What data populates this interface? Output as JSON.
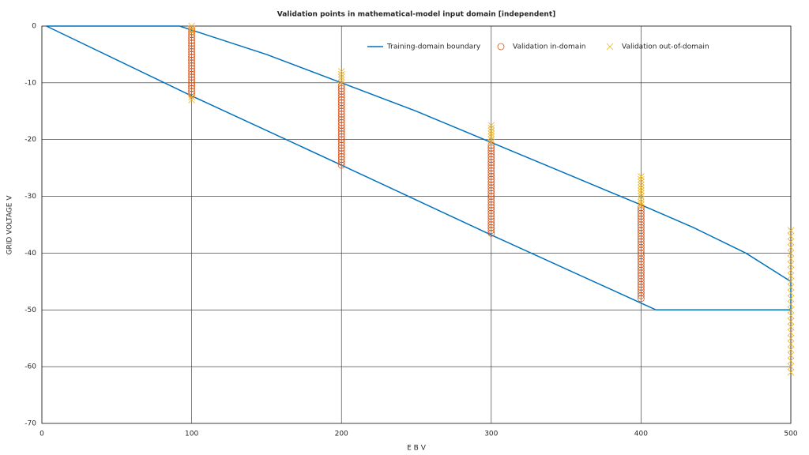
{
  "chart_data": {
    "type": "scatter",
    "title": "Validation points in mathematical-model input domain [independent]",
    "x_label": "E B V",
    "y_label": "GRID VOLTAGE V",
    "xlim": [
      0,
      500
    ],
    "ylim": [
      -70,
      0
    ],
    "xticks": [
      0,
      100,
      200,
      300,
      400,
      500
    ],
    "yticks": [
      0,
      -10,
      -20,
      -30,
      -40,
      -50,
      -60,
      -70
    ],
    "grid": true,
    "legend": "top",
    "series": [
      {
        "name": "Training-domain boundary",
        "type": "line",
        "color": "#0072bd",
        "x": [
          3,
          92,
          100,
          150,
          200,
          250,
          300,
          350,
          400,
          435,
          470,
          500,
          500,
          410,
          400,
          300,
          200,
          100,
          3
        ],
        "y": [
          0,
          0,
          -0.7,
          -5,
          -10,
          -15,
          -20.5,
          -26,
          -31.5,
          -35.5,
          -40,
          -45,
          -50,
          -50,
          -48.8,
          -36.8,
          -24.5,
          -12.3,
          0
        ]
      },
      {
        "name": "Validation in-domain",
        "type": "scatter",
        "marker": "circle",
        "color": "#d95319",
        "x": [
          100,
          100,
          100,
          100,
          100,
          100,
          100,
          100,
          100,
          100,
          100,
          100,
          100,
          100,
          100,
          100,
          100,
          100,
          100,
          100,
          100,
          100,
          100,
          100,
          200,
          200,
          200,
          200,
          200,
          200,
          200,
          200,
          200,
          200,
          200,
          200,
          200,
          200,
          200,
          200,
          200,
          200,
          200,
          200,
          200,
          200,
          200,
          200,
          200,
          200,
          200,
          200,
          200,
          300,
          300,
          300,
          300,
          300,
          300,
          300,
          300,
          300,
          300,
          300,
          300,
          300,
          300,
          300,
          300,
          300,
          300,
          300,
          300,
          300,
          300,
          300,
          300,
          300,
          300,
          300,
          300,
          300,
          300,
          300,
          300,
          400,
          400,
          400,
          400,
          400,
          400,
          400,
          400,
          400,
          400,
          400,
          400,
          400,
          400,
          400,
          400,
          400,
          400,
          400,
          400,
          400,
          400,
          400,
          400,
          400,
          400,
          400,
          400,
          400,
          400,
          400,
          400,
          400
        ],
        "y": [
          -0.5,
          -1,
          -1.5,
          -2,
          -2.5,
          -3,
          -3.5,
          -4,
          -4.5,
          -5,
          -5.5,
          -6,
          -6.5,
          -7,
          -7.5,
          -8,
          -8.5,
          -9,
          -9.5,
          -10,
          -10.5,
          -11,
          -11.5,
          -12,
          -10.5,
          -11,
          -11.5,
          -12,
          -12.5,
          -13,
          -13.5,
          -14,
          -14.5,
          -15,
          -15.5,
          -16,
          -16.5,
          -17,
          -17.5,
          -18,
          -18.5,
          -19,
          -19.5,
          -20,
          -20.5,
          -21,
          -21.5,
          -22,
          -22.5,
          -23,
          -23.5,
          -24,
          -24.5,
          -21,
          -21.5,
          -22,
          -22.5,
          -23,
          -23.5,
          -24,
          -24.5,
          -25,
          -25.5,
          -26,
          -26.5,
          -27,
          -27.5,
          -28,
          -28.5,
          -29,
          -29.5,
          -30,
          -30.5,
          -31,
          -31.5,
          -32,
          -32.5,
          -33,
          -33.5,
          -34,
          -34.5,
          -35,
          -35.5,
          -36,
          -36.5,
          -32,
          -32.5,
          -33,
          -33.5,
          -34,
          -34.5,
          -35,
          -35.5,
          -36,
          -36.5,
          -37,
          -37.5,
          -38,
          -38.5,
          -39,
          -39.5,
          -40,
          -40.5,
          -41,
          -41.5,
          -42,
          -42.5,
          -43,
          -43.5,
          -44,
          -44.5,
          -45,
          -45.5,
          -46,
          -46.5,
          -47,
          -47.5,
          -48
        ]
      },
      {
        "name": "Validation out-of-domain",
        "type": "scatter",
        "marker": "x",
        "color": "#edb120",
        "x": [
          100,
          100,
          100,
          100,
          100,
          200,
          200,
          200,
          200,
          200,
          300,
          300,
          300,
          300,
          300,
          300,
          300,
          400,
          400,
          400,
          400,
          400,
          400,
          400,
          400,
          400,
          400,
          400,
          500,
          500,
          500,
          500,
          500,
          500,
          500,
          500,
          500,
          500,
          500,
          500,
          500,
          500,
          500,
          500,
          500,
          500,
          500,
          500,
          500,
          500,
          500,
          500,
          500,
          500
        ],
        "y": [
          0,
          -0.5,
          -1,
          -12.5,
          -13,
          -8,
          -8.5,
          -9,
          -9.5,
          -10,
          -17.5,
          -18,
          -18.5,
          -19,
          -19.5,
          -20,
          -20.5,
          -26.5,
          -27,
          -27.5,
          -28,
          -28.5,
          -29,
          -29.5,
          -30,
          -30.5,
          -31,
          -31.5,
          -36,
          -37,
          -38,
          -39,
          -40,
          -41,
          -42,
          -43,
          -44,
          -45,
          -46,
          -47,
          -48,
          -49,
          -50,
          -51,
          -52,
          -53,
          -54,
          -55,
          -56,
          -57,
          -58,
          -59,
          -60,
          -61
        ]
      }
    ]
  }
}
